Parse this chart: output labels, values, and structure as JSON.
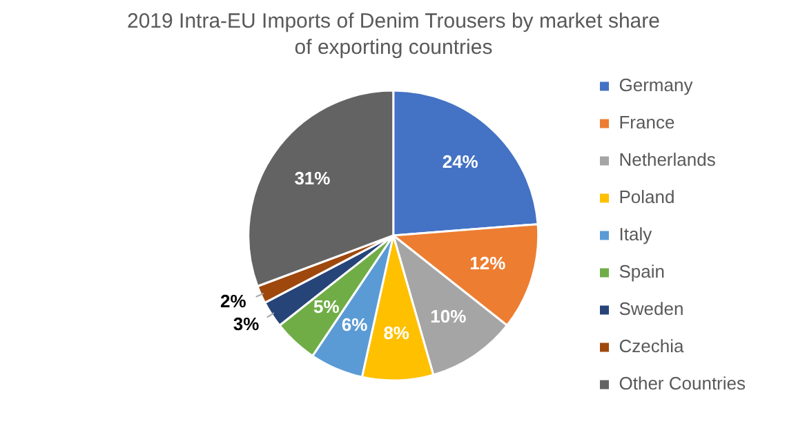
{
  "chart_data": {
    "type": "pie",
    "title": "2019 Intra-EU Imports of Denim Trousers by market share of exporting countries",
    "categories": [
      "Germany",
      "France",
      "Netherlands",
      "Poland",
      "Italy",
      "Spain",
      "Sweden",
      "Czechia",
      "Other Countries"
    ],
    "values": [
      24,
      12,
      10,
      8,
      6,
      5,
      3,
      2,
      31
    ],
    "value_labels": [
      "24%",
      "12%",
      "10%",
      "8%",
      "6%",
      "5%",
      "3%",
      "2%",
      "31%"
    ],
    "colors": [
      "#4472c4",
      "#ed7d31",
      "#a5a5a5",
      "#ffc000",
      "#5b9bd5",
      "#70ad47",
      "#264478",
      "#9e480e",
      "#636363"
    ],
    "legend": "right"
  }
}
